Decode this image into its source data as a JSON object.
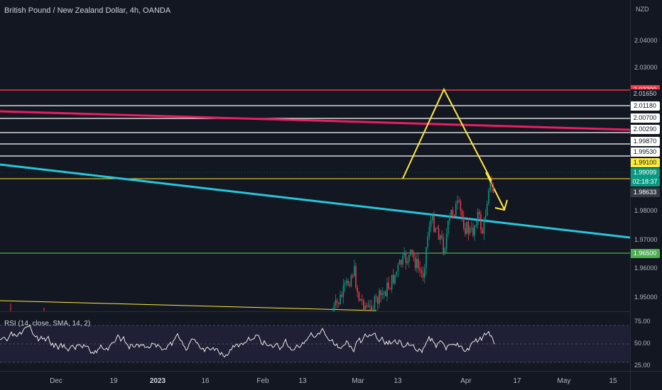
{
  "chart": {
    "title": "British Pound / New Zealand Dollar, 4h, OANDA",
    "currency": "NZD"
  },
  "price_axis": {
    "ticks": [
      "2.04000",
      "2.03000",
      "1.98000",
      "1.97000",
      "1.96000",
      "1.95000"
    ]
  },
  "price_labels": {
    "red_level": "2.02200",
    "level_1": "2.01650",
    "level_2": "2.01180",
    "level_3": "2.00700",
    "level_4": "2.00290",
    "level_5": "1.99870",
    "level_6": "1.99530",
    "yellow_level": "1.99100",
    "current_price": "1.99099",
    "countdown": "02:18:37",
    "grey_price": "1.98633",
    "green_level": "1.96500"
  },
  "colors": {
    "background": "#131722",
    "red_level": "#f23645",
    "yellow_level": "#ffeb3b",
    "green_level": "#4caf50",
    "current_price": "#089981",
    "teal_trendline": "#26c6da",
    "pink_trendline": "#e91e63",
    "candle_up": "#089981",
    "candle_down": "#f23645"
  },
  "rsi": {
    "label": "RSI (14, close, SMA, 14, 2)",
    "ticks": [
      "75.00",
      "50.00",
      "25.00"
    ]
  },
  "time_axis": {
    "ticks": [
      "Dec",
      "19",
      "2023",
      "16",
      "Feb",
      "13",
      "Mar",
      "13",
      "Apr",
      "17",
      "May",
      "15"
    ]
  },
  "chart_data": {
    "type": "candlestick",
    "symbol": "British Pound / New Zealand Dollar, 4h, OANDA",
    "horizontal_levels": [
      2.022,
      2.0165,
      2.0118,
      2.007,
      2.0029,
      1.9987,
      1.9953,
      1.991,
      1.965
    ],
    "last_price": 1.99099,
    "grey_price": 1.98633,
    "rsi_bands": [
      75,
      50,
      25
    ]
  }
}
